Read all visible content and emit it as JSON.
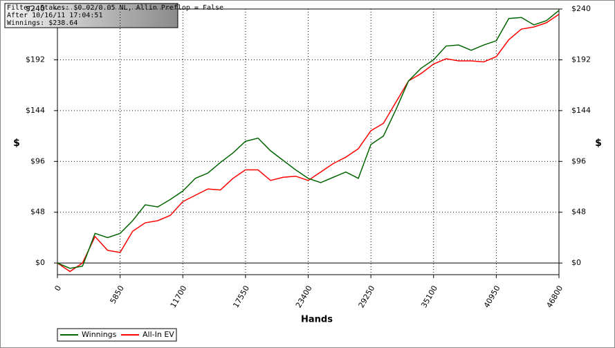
{
  "chart_data": {
    "type": "line",
    "info": [
      "Filter: Stakes: $0.02/0.05 NL, Allin Preflop = False",
      "After 10/16/11 17:04:51",
      "Winnings: $238.64"
    ],
    "x_label": "Hands",
    "y_label": "$",
    "y2_label": "$",
    "x": [
      0,
      1170,
      2340,
      3510,
      4680,
      5850,
      7020,
      8190,
      9360,
      10530,
      11700,
      12870,
      14040,
      15210,
      16380,
      17550,
      18720,
      19890,
      21060,
      22230,
      23400,
      24570,
      25740,
      26910,
      28080,
      29250,
      30420,
      31590,
      32760,
      33930,
      35100,
      36270,
      37440,
      38610,
      39780,
      40950,
      42120,
      43290,
      44460,
      45630,
      46800
    ],
    "series": [
      {
        "name": "Winnings",
        "color": "#006400",
        "values": [
          0,
          -5,
          -3,
          28,
          24,
          28,
          40,
          55,
          53,
          60,
          68,
          80,
          85,
          95,
          104,
          115,
          118,
          106,
          97,
          88,
          80,
          76,
          81,
          86,
          80,
          112,
          120,
          145,
          172,
          184,
          192,
          205,
          206,
          201,
          206,
          210,
          231,
          232,
          225,
          229,
          238.64
        ]
      },
      {
        "name": "All-In EV",
        "color": "#ff0000",
        "values": [
          0,
          -8,
          0,
          25,
          12,
          10,
          30,
          38,
          40,
          45,
          58,
          64,
          70,
          69,
          80,
          88,
          88,
          78,
          81,
          82,
          78,
          86,
          94,
          100,
          108,
          125,
          132,
          152,
          172,
          179,
          188,
          193,
          191,
          191,
          190,
          195,
          211,
          221,
          223,
          227,
          235
        ]
      }
    ],
    "xlim": [
      0,
      46800
    ],
    "xticks": [
      0,
      5850,
      11700,
      17550,
      23400,
      29250,
      35100,
      40950,
      46800
    ],
    "ylim": [
      -11,
      240
    ],
    "yticks": [
      {
        "value": 0,
        "label": "$0"
      },
      {
        "value": 48,
        "label": "$48"
      },
      {
        "value": 96,
        "label": "$96"
      },
      {
        "value": 144,
        "label": "$144"
      },
      {
        "value": 192,
        "label": "$192"
      },
      {
        "value": 240,
        "label": "$240"
      }
    ],
    "y2lim": [
      -11,
      240
    ],
    "y2ticks": [
      {
        "value": 0,
        "label": "$0"
      },
      {
        "value": 48,
        "label": "$48"
      },
      {
        "value": 96,
        "label": "$96"
      },
      {
        "value": 144,
        "label": "$144"
      },
      {
        "value": 192,
        "label": "$192"
      },
      {
        "value": 240,
        "label": "$240"
      }
    ],
    "grid": true
  }
}
